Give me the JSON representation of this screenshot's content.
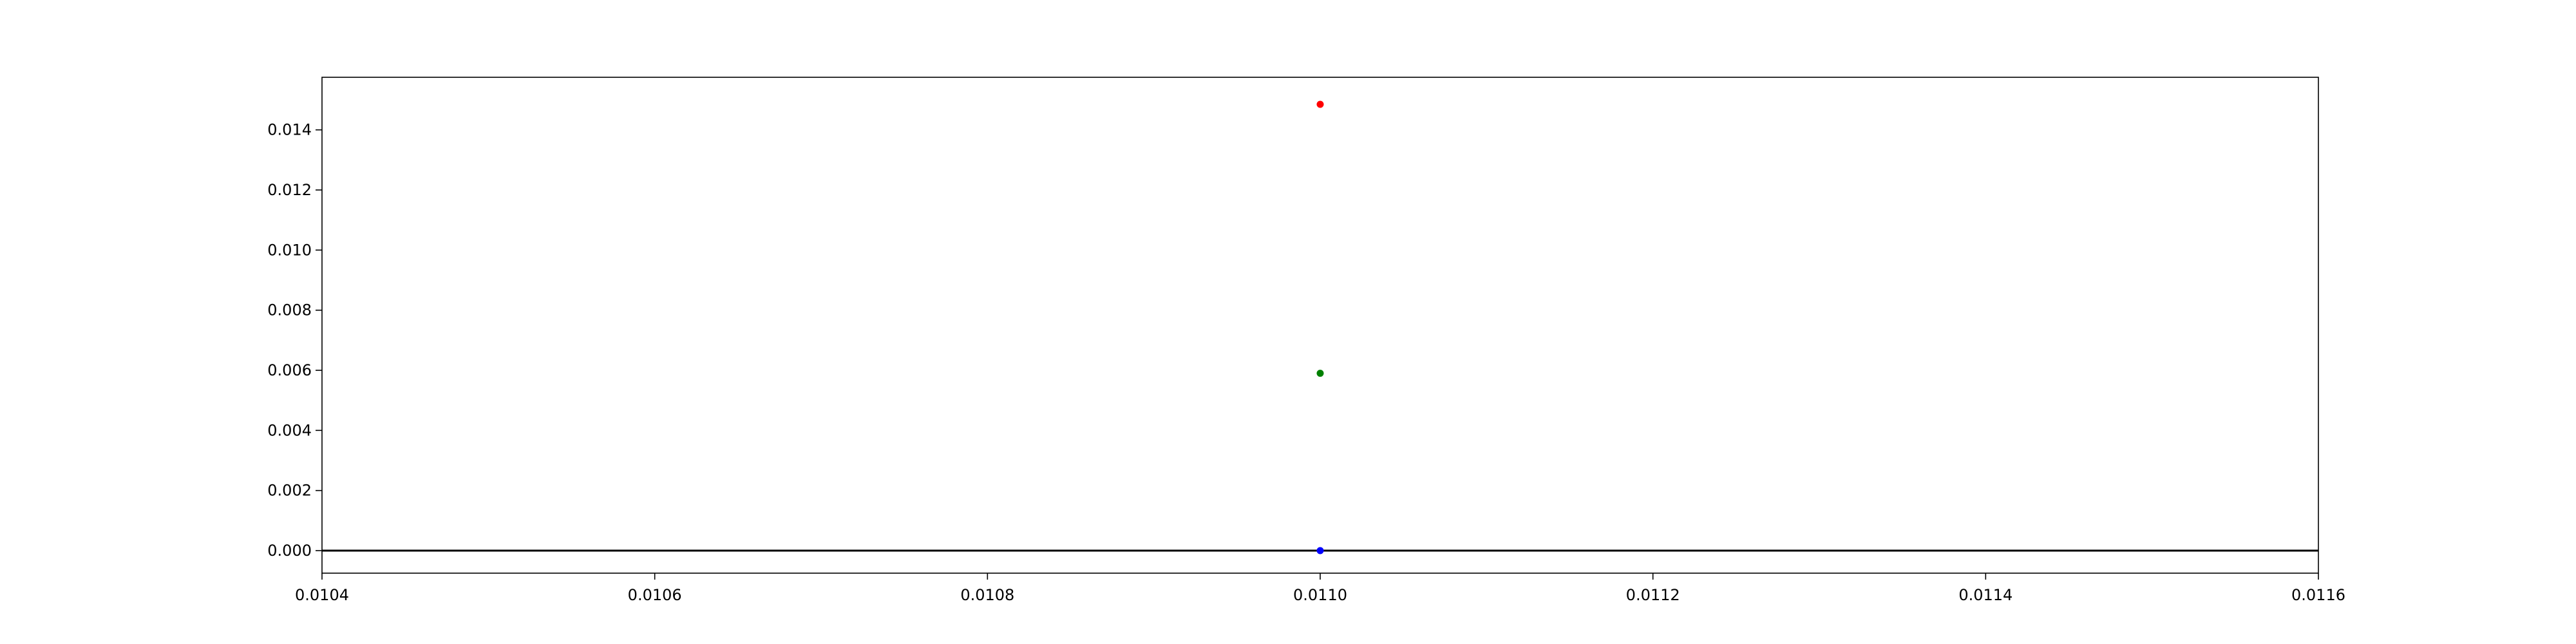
{
  "chart_data": {
    "type": "scatter",
    "title": "",
    "xlabel": "",
    "ylabel": "",
    "xlim": [
      0.0104,
      0.0116
    ],
    "ylim": [
      -0.00075,
      0.01575
    ],
    "xticks": [
      "0.0104",
      "0.0106",
      "0.0108",
      "0.0110",
      "0.0112",
      "0.0114",
      "0.0116"
    ],
    "xtick_values": [
      0.0104,
      0.0106,
      0.0108,
      0.011,
      0.0112,
      0.0114,
      0.0116
    ],
    "yticks": [
      "0.000",
      "0.002",
      "0.004",
      "0.006",
      "0.008",
      "0.010",
      "0.012",
      "0.014"
    ],
    "ytick_values": [
      0.0,
      0.002,
      0.004,
      0.006,
      0.008,
      0.01,
      0.012,
      0.014
    ],
    "hline": {
      "y": 0.0,
      "color": "#000000"
    },
    "grid": false,
    "points": [
      {
        "x": 0.011,
        "y": 0.01485,
        "color": "#ff0000"
      },
      {
        "x": 0.011,
        "y": 0.0059,
        "color": "#008000"
      },
      {
        "x": 0.011,
        "y": 0.0,
        "color": "#0000ff"
      }
    ]
  }
}
